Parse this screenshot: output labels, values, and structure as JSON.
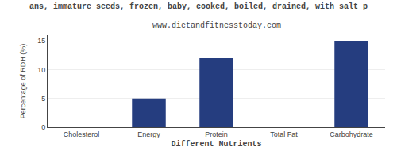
{
  "chart_data": {
    "type": "bar",
    "title": "ans, immature seeds, frozen, baby, cooked, boiled, drained, with salt p",
    "subtitle": "www.dietandfitnesstoday.com",
    "categories": [
      "Cholesterol",
      "Energy",
      "Protein",
      "Total Fat",
      "Carbohydrate"
    ],
    "values": [
      0,
      5,
      12,
      0,
      15
    ],
    "color": "#253d7f",
    "xlabel": "Different Nutrients",
    "ylabel": "Percentage of RDH (%)",
    "ylim": [
      0,
      16
    ],
    "yticks": [
      0,
      5,
      10,
      15
    ],
    "grid": true
  }
}
